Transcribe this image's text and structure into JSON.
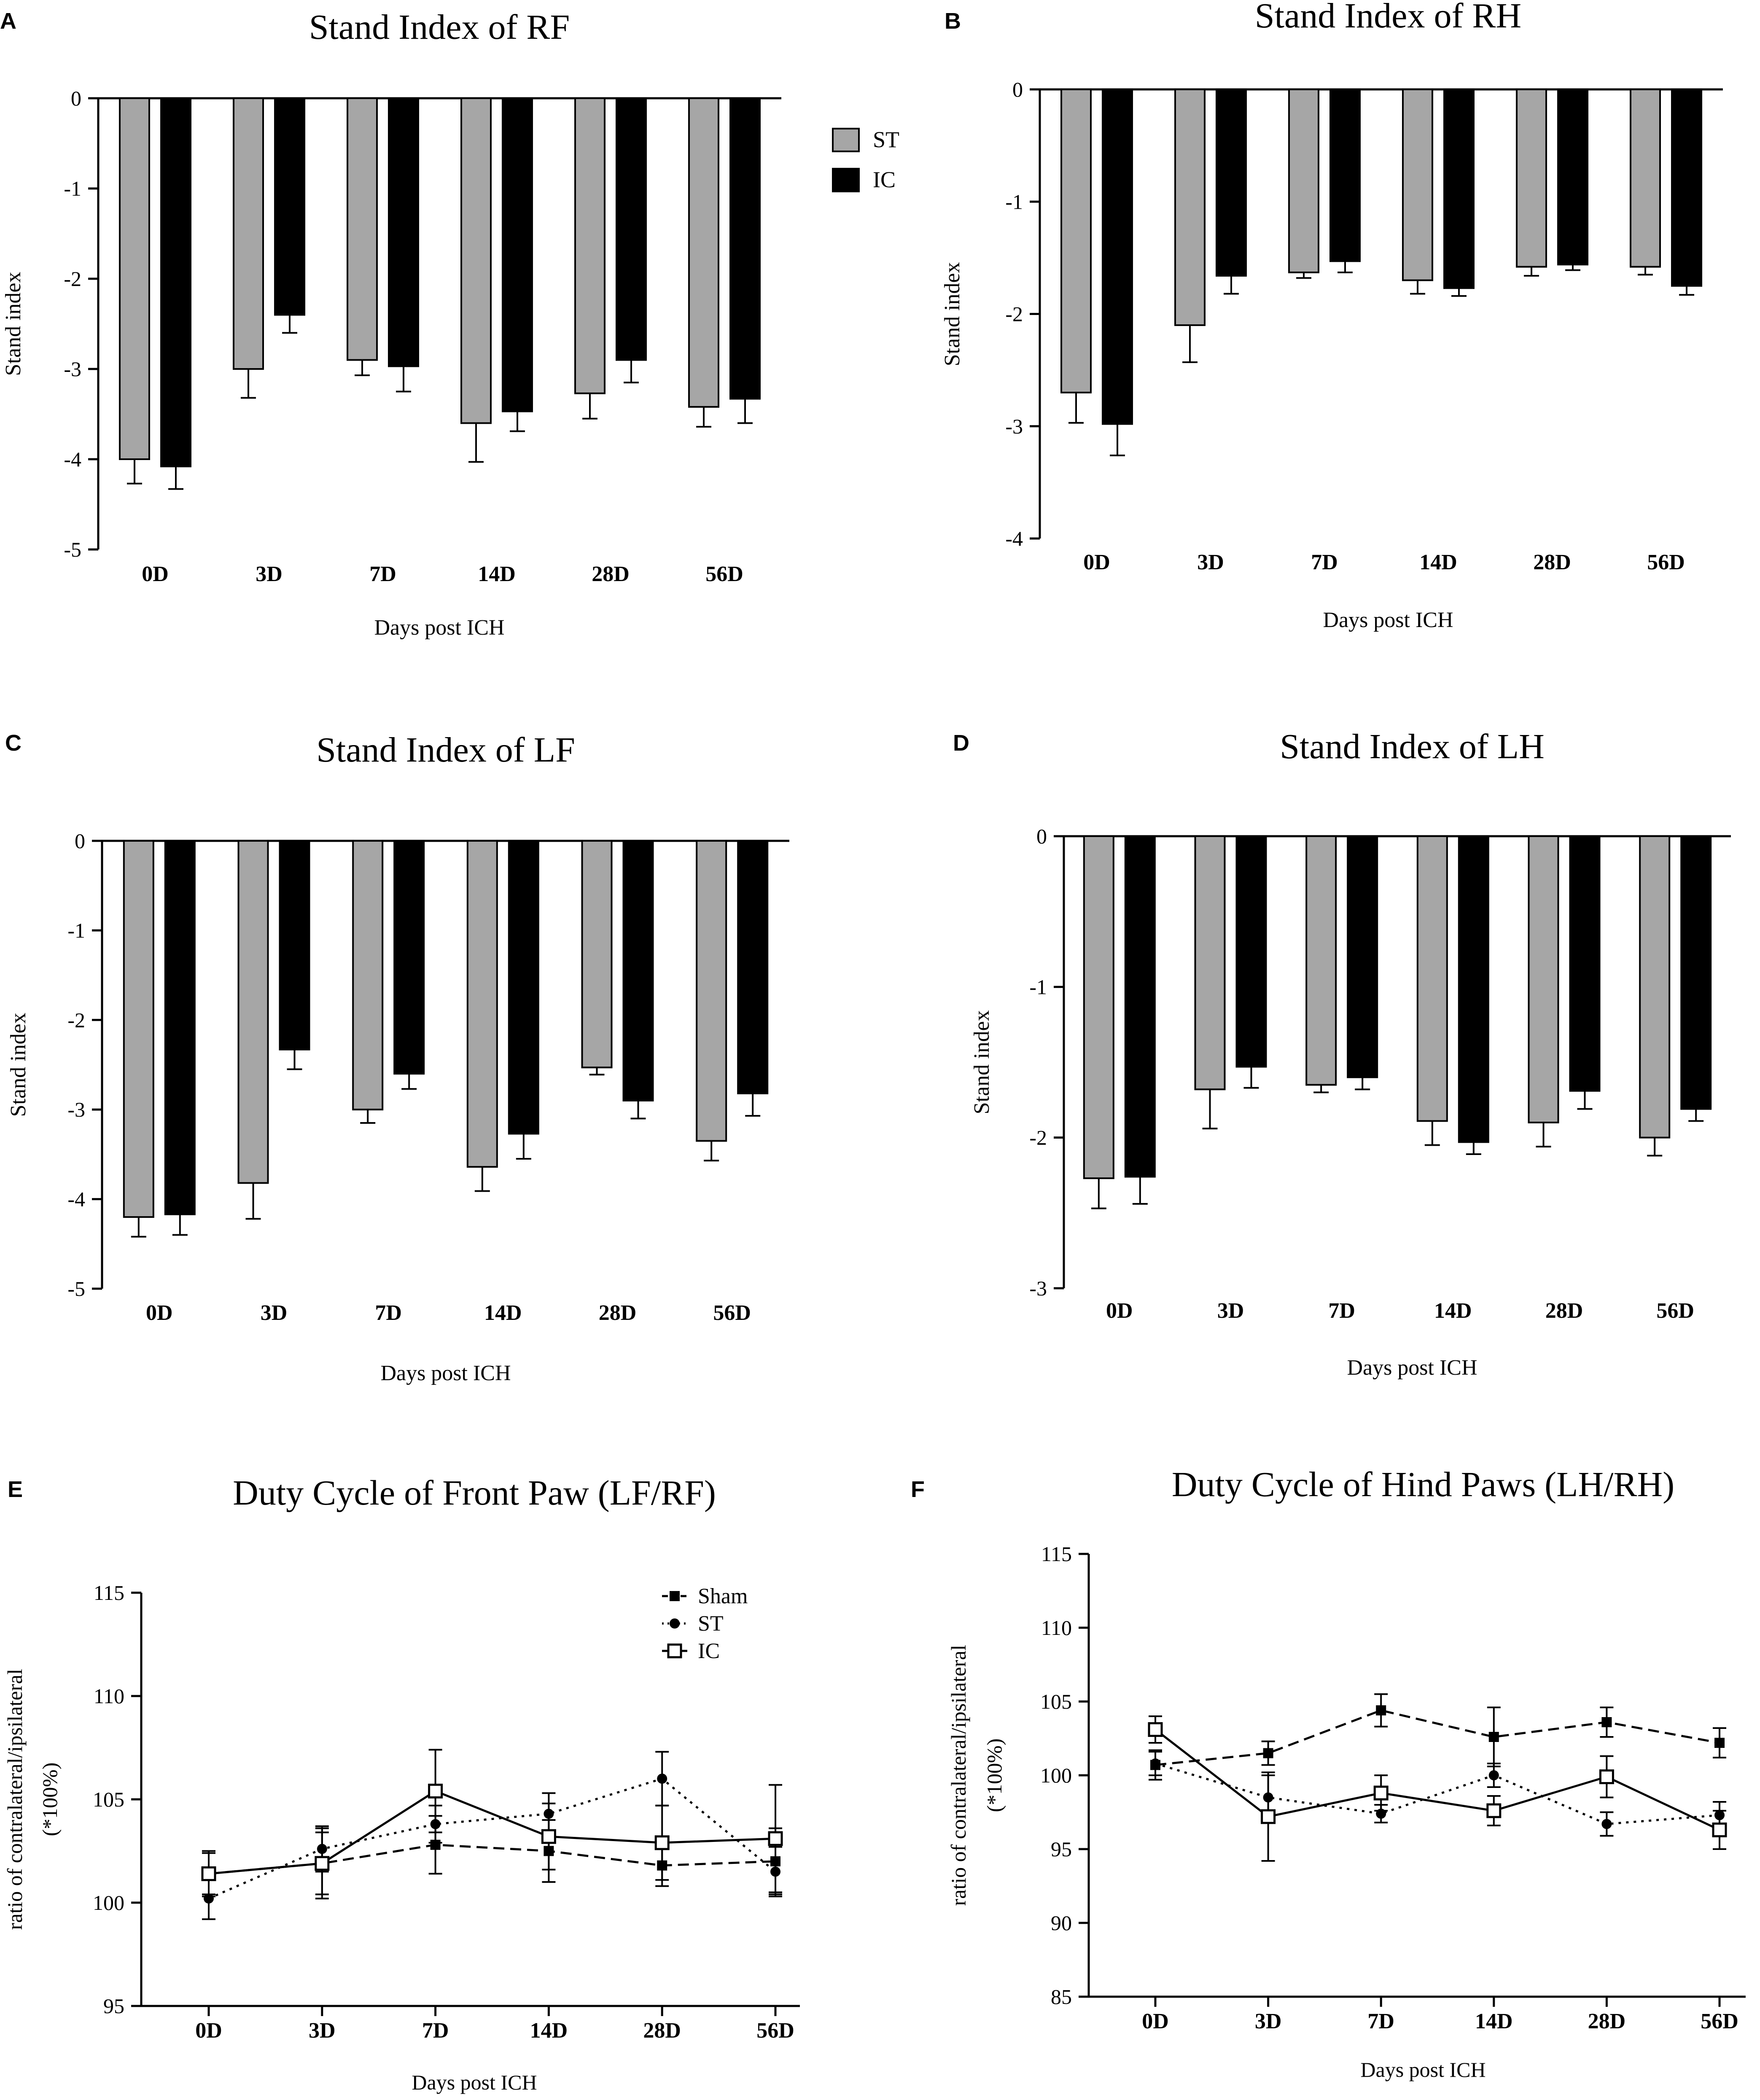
{
  "figure": {
    "panels": [
      {
        "letter": "A"
      },
      {
        "letter": "B"
      },
      {
        "letter": "C"
      },
      {
        "letter": "D"
      },
      {
        "letter": "E"
      },
      {
        "letter": "F"
      }
    ]
  },
  "colors": {
    "st_bar": "#a6a6a6",
    "ic_bar": "#000000",
    "axis": "#000000",
    "line": "#000000"
  },
  "chart_data": [
    {
      "type": "bar",
      "title": "Stand Index of RF",
      "xlabel": "Days post ICH",
      "ylabel": "Stand index",
      "categories": [
        "0D",
        "3D",
        "7D",
        "14D",
        "28D",
        "56D"
      ],
      "ylim": [
        -5,
        0
      ],
      "yticks": [
        0,
        -1,
        -2,
        -3,
        -4,
        -5
      ],
      "ytick_labels": [
        "0",
        "-1",
        "-2",
        "-3",
        "-4",
        "-5"
      ],
      "legend": [
        "ST",
        "IC"
      ],
      "series": [
        {
          "name": "ST",
          "values": [
            -4.0,
            -3.0,
            -2.9,
            -3.6,
            -3.27,
            -3.42
          ],
          "errors": [
            0.27,
            0.32,
            0.17,
            0.43,
            0.28,
            0.22
          ]
        },
        {
          "name": "IC",
          "values": [
            -4.08,
            -2.4,
            -2.97,
            -3.47,
            -2.9,
            -3.33
          ],
          "errors": [
            0.25,
            0.2,
            0.28,
            0.22,
            0.25,
            0.27
          ]
        }
      ]
    },
    {
      "type": "bar",
      "title": "Stand Index of RH",
      "xlabel": "Days post ICH",
      "ylabel": "Stand index",
      "categories": [
        "0D",
        "3D",
        "7D",
        "14D",
        "28D",
        "56D"
      ],
      "ylim": [
        -4,
        0
      ],
      "yticks": [
        0,
        -1,
        -2,
        -3,
        -4
      ],
      "ytick_labels": [
        "0",
        "-1",
        "-2",
        "-3",
        "-4"
      ],
      "series": [
        {
          "name": "ST",
          "values": [
            -2.7,
            -2.1,
            -1.63,
            -1.7,
            -1.58,
            -1.58
          ],
          "errors": [
            0.27,
            0.33,
            0.05,
            0.12,
            0.08,
            0.07
          ]
        },
        {
          "name": "IC",
          "values": [
            -2.98,
            -1.66,
            -1.53,
            -1.77,
            -1.56,
            -1.75
          ],
          "errors": [
            0.28,
            0.16,
            0.1,
            0.07,
            0.05,
            0.08
          ]
        }
      ]
    },
    {
      "type": "bar",
      "title": "Stand Index of LF",
      "xlabel": "Days post ICH",
      "ylabel": "Stand index",
      "categories": [
        "0D",
        "3D",
        "7D",
        "14D",
        "28D",
        "56D"
      ],
      "ylim": [
        -5,
        0
      ],
      "yticks": [
        0,
        -1,
        -2,
        -3,
        -4,
        -5
      ],
      "ytick_labels": [
        "0",
        "-1",
        "-2",
        "-3",
        "-4",
        "-5"
      ],
      "series": [
        {
          "name": "ST",
          "values": [
            -4.2,
            -3.82,
            -3.0,
            -3.64,
            -2.53,
            -3.35
          ],
          "errors": [
            0.22,
            0.4,
            0.15,
            0.27,
            0.08,
            0.22
          ]
        },
        {
          "name": "IC",
          "values": [
            -4.17,
            -2.33,
            -2.6,
            -3.27,
            -2.9,
            -2.82
          ],
          "errors": [
            0.23,
            0.22,
            0.17,
            0.28,
            0.2,
            0.25
          ]
        }
      ]
    },
    {
      "type": "bar",
      "title": "Stand Index of LH",
      "xlabel": "Days post ICH",
      "ylabel": "Stand index",
      "categories": [
        "0D",
        "3D",
        "7D",
        "14D",
        "28D",
        "56D"
      ],
      "ylim": [
        -3,
        0
      ],
      "yticks": [
        0,
        -1,
        -2,
        -3
      ],
      "ytick_labels": [
        "0",
        "-1",
        "-2",
        "-3"
      ],
      "series": [
        {
          "name": "ST",
          "values": [
            -2.27,
            -1.68,
            -1.65,
            -1.89,
            -1.9,
            -2.0
          ],
          "errors": [
            0.2,
            0.26,
            0.05,
            0.16,
            0.16,
            0.12
          ]
        },
        {
          "name": "IC",
          "values": [
            -2.26,
            -1.53,
            -1.6,
            -2.03,
            -1.69,
            -1.81
          ],
          "errors": [
            0.18,
            0.14,
            0.08,
            0.08,
            0.12,
            0.08
          ]
        }
      ]
    },
    {
      "type": "line",
      "title": "Duty Cycle of Front Paw (LF/RF)",
      "xlabel": "Days post ICH",
      "ylabel_line1": "ratio of contralateral/ipsilateral",
      "ylabel_line2": "(*100%)",
      "categories": [
        "0D",
        "3D",
        "7D",
        "14D",
        "28D",
        "56D"
      ],
      "ylim": [
        95,
        115
      ],
      "yticks": [
        95,
        100,
        105,
        110,
        115
      ],
      "ytick_labels": [
        "95",
        "100",
        "105",
        "110",
        "115"
      ],
      "legend": [
        "Sham",
        "ST",
        "IC"
      ],
      "series": [
        {
          "name": "Sham",
          "values": [
            101.4,
            101.9,
            102.8,
            102.5,
            101.8,
            102.0
          ],
          "errors": [
            1.1,
            1.7,
            1.4,
            1.5,
            1.0,
            1.6
          ]
        },
        {
          "name": "ST",
          "values": [
            100.2,
            102.6,
            103.8,
            104.3,
            106.0,
            101.5
          ],
          "errors": [
            1.0,
            1.1,
            0.9,
            1.0,
            1.3,
            1.2
          ]
        },
        {
          "name": "IC",
          "values": [
            101.4,
            101.9,
            105.4,
            103.2,
            102.9,
            103.1
          ],
          "errors": [
            1.0,
            1.5,
            2.0,
            1.6,
            1.8,
            2.6
          ]
        }
      ]
    },
    {
      "type": "line",
      "title": "Duty Cycle of Hind Paws (LH/RH)",
      "xlabel": "Days post ICH",
      "ylabel_line1": "ratio of contralateral/ipsilateral",
      "ylabel_line2": "(*100%)",
      "categories": [
        "0D",
        "3D",
        "7D",
        "14D",
        "28D",
        "56D"
      ],
      "ylim": [
        85,
        115
      ],
      "yticks": [
        85,
        90,
        95,
        100,
        105,
        110,
        115
      ],
      "ytick_labels": [
        "85",
        "90",
        "95",
        "100",
        "105",
        "110",
        "115"
      ],
      "series": [
        {
          "name": "Sham",
          "values": [
            100.7,
            101.5,
            104.4,
            102.6,
            103.6,
            102.2
          ],
          "errors": [
            1.0,
            0.8,
            1.1,
            2.0,
            1.0,
            1.0
          ]
        },
        {
          "name": "ST",
          "values": [
            100.8,
            98.5,
            97.4,
            100.0,
            96.7,
            97.3
          ],
          "errors": [
            0.8,
            1.5,
            0.6,
            0.8,
            0.8,
            0.9
          ]
        },
        {
          "name": "IC",
          "values": [
            103.1,
            97.2,
            98.8,
            97.6,
            99.9,
            96.3
          ],
          "errors": [
            0.9,
            3.0,
            1.2,
            1.0,
            1.4,
            1.3
          ]
        }
      ]
    }
  ]
}
